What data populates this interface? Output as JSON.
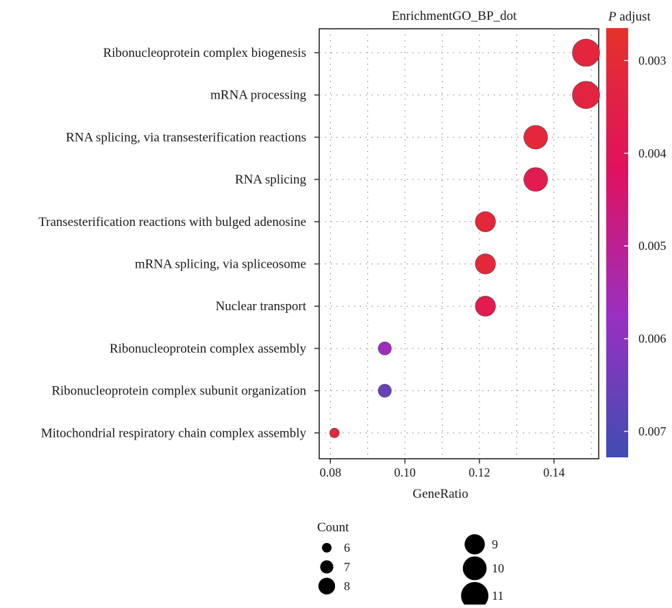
{
  "chart_data": {
    "type": "scatter",
    "title": "EnrichmentGO_BP_dot",
    "xlabel": "GeneRatio",
    "ylabel": "",
    "xlim": [
      0.077,
      0.152
    ],
    "xticks": [
      0.08,
      0.1,
      0.12,
      0.14
    ],
    "xtick_labels": [
      "0.08",
      "0.10",
      "0.12",
      "0.14"
    ],
    "grid": true,
    "categories": [
      "Ribonucleoprotein complex biogenesis",
      "mRNA processing",
      "RNA splicing, via transesterification reactions",
      "RNA splicing",
      "Transesterification reactions with bulged adenosine",
      "mRNA splicing, via spliceosome",
      "Nuclear transport",
      "Ribonucleoprotein complex assembly",
      "Ribonucleoprotein complex subunit organization",
      "Mitochondrial respiratory chain complex assembly"
    ],
    "points": [
      {
        "term": "Ribonucleoprotein complex biogenesis",
        "gene_ratio": 0.1486,
        "count": 11,
        "p_adjust": 0.0032
      },
      {
        "term": "mRNA processing",
        "gene_ratio": 0.1486,
        "count": 11,
        "p_adjust": 0.0033
      },
      {
        "term": "RNA splicing, via transesterification reactions",
        "gene_ratio": 0.1351,
        "count": 10,
        "p_adjust": 0.0031
      },
      {
        "term": "RNA splicing",
        "gene_ratio": 0.1351,
        "count": 10,
        "p_adjust": 0.0037
      },
      {
        "term": "Transesterification reactions with bulged adenosine",
        "gene_ratio": 0.1216,
        "count": 9,
        "p_adjust": 0.0031
      },
      {
        "term": "mRNA splicing, via spliceosome",
        "gene_ratio": 0.1216,
        "count": 9,
        "p_adjust": 0.0031
      },
      {
        "term": "Nuclear transport",
        "gene_ratio": 0.1216,
        "count": 9,
        "p_adjust": 0.0037
      },
      {
        "term": "Ribonucleoprotein complex assembly",
        "gene_ratio": 0.0946,
        "count": 7,
        "p_adjust": 0.0057
      },
      {
        "term": "Ribonucleoprotein complex subunit organization",
        "gene_ratio": 0.0946,
        "count": 7,
        "p_adjust": 0.0066
      },
      {
        "term": "Mitochondrial respiratory chain complex assembly",
        "gene_ratio": 0.0811,
        "count": 6,
        "p_adjust": 0.0031
      }
    ],
    "color_legend": {
      "title_italic": "P",
      "title_rest": " adjust",
      "range": [
        0.00265,
        0.00728
      ],
      "ticks": [
        0.003,
        0.004,
        0.005,
        0.006,
        0.007
      ],
      "tick_labels": [
        "0.003",
        "0.004",
        "0.005",
        "0.006",
        "0.007"
      ],
      "colors": [
        "#e5322a",
        "#e0115f",
        "#9b2fc2",
        "#3f4db3"
      ]
    },
    "size_legend": {
      "title": "Count",
      "items": [
        {
          "count": 6,
          "label": "6"
        },
        {
          "count": 7,
          "label": "7"
        },
        {
          "count": 8,
          "label": "8"
        },
        {
          "count": 9,
          "label": "9"
        },
        {
          "count": 10,
          "label": "10"
        },
        {
          "count": 11,
          "label": "11"
        }
      ]
    }
  }
}
